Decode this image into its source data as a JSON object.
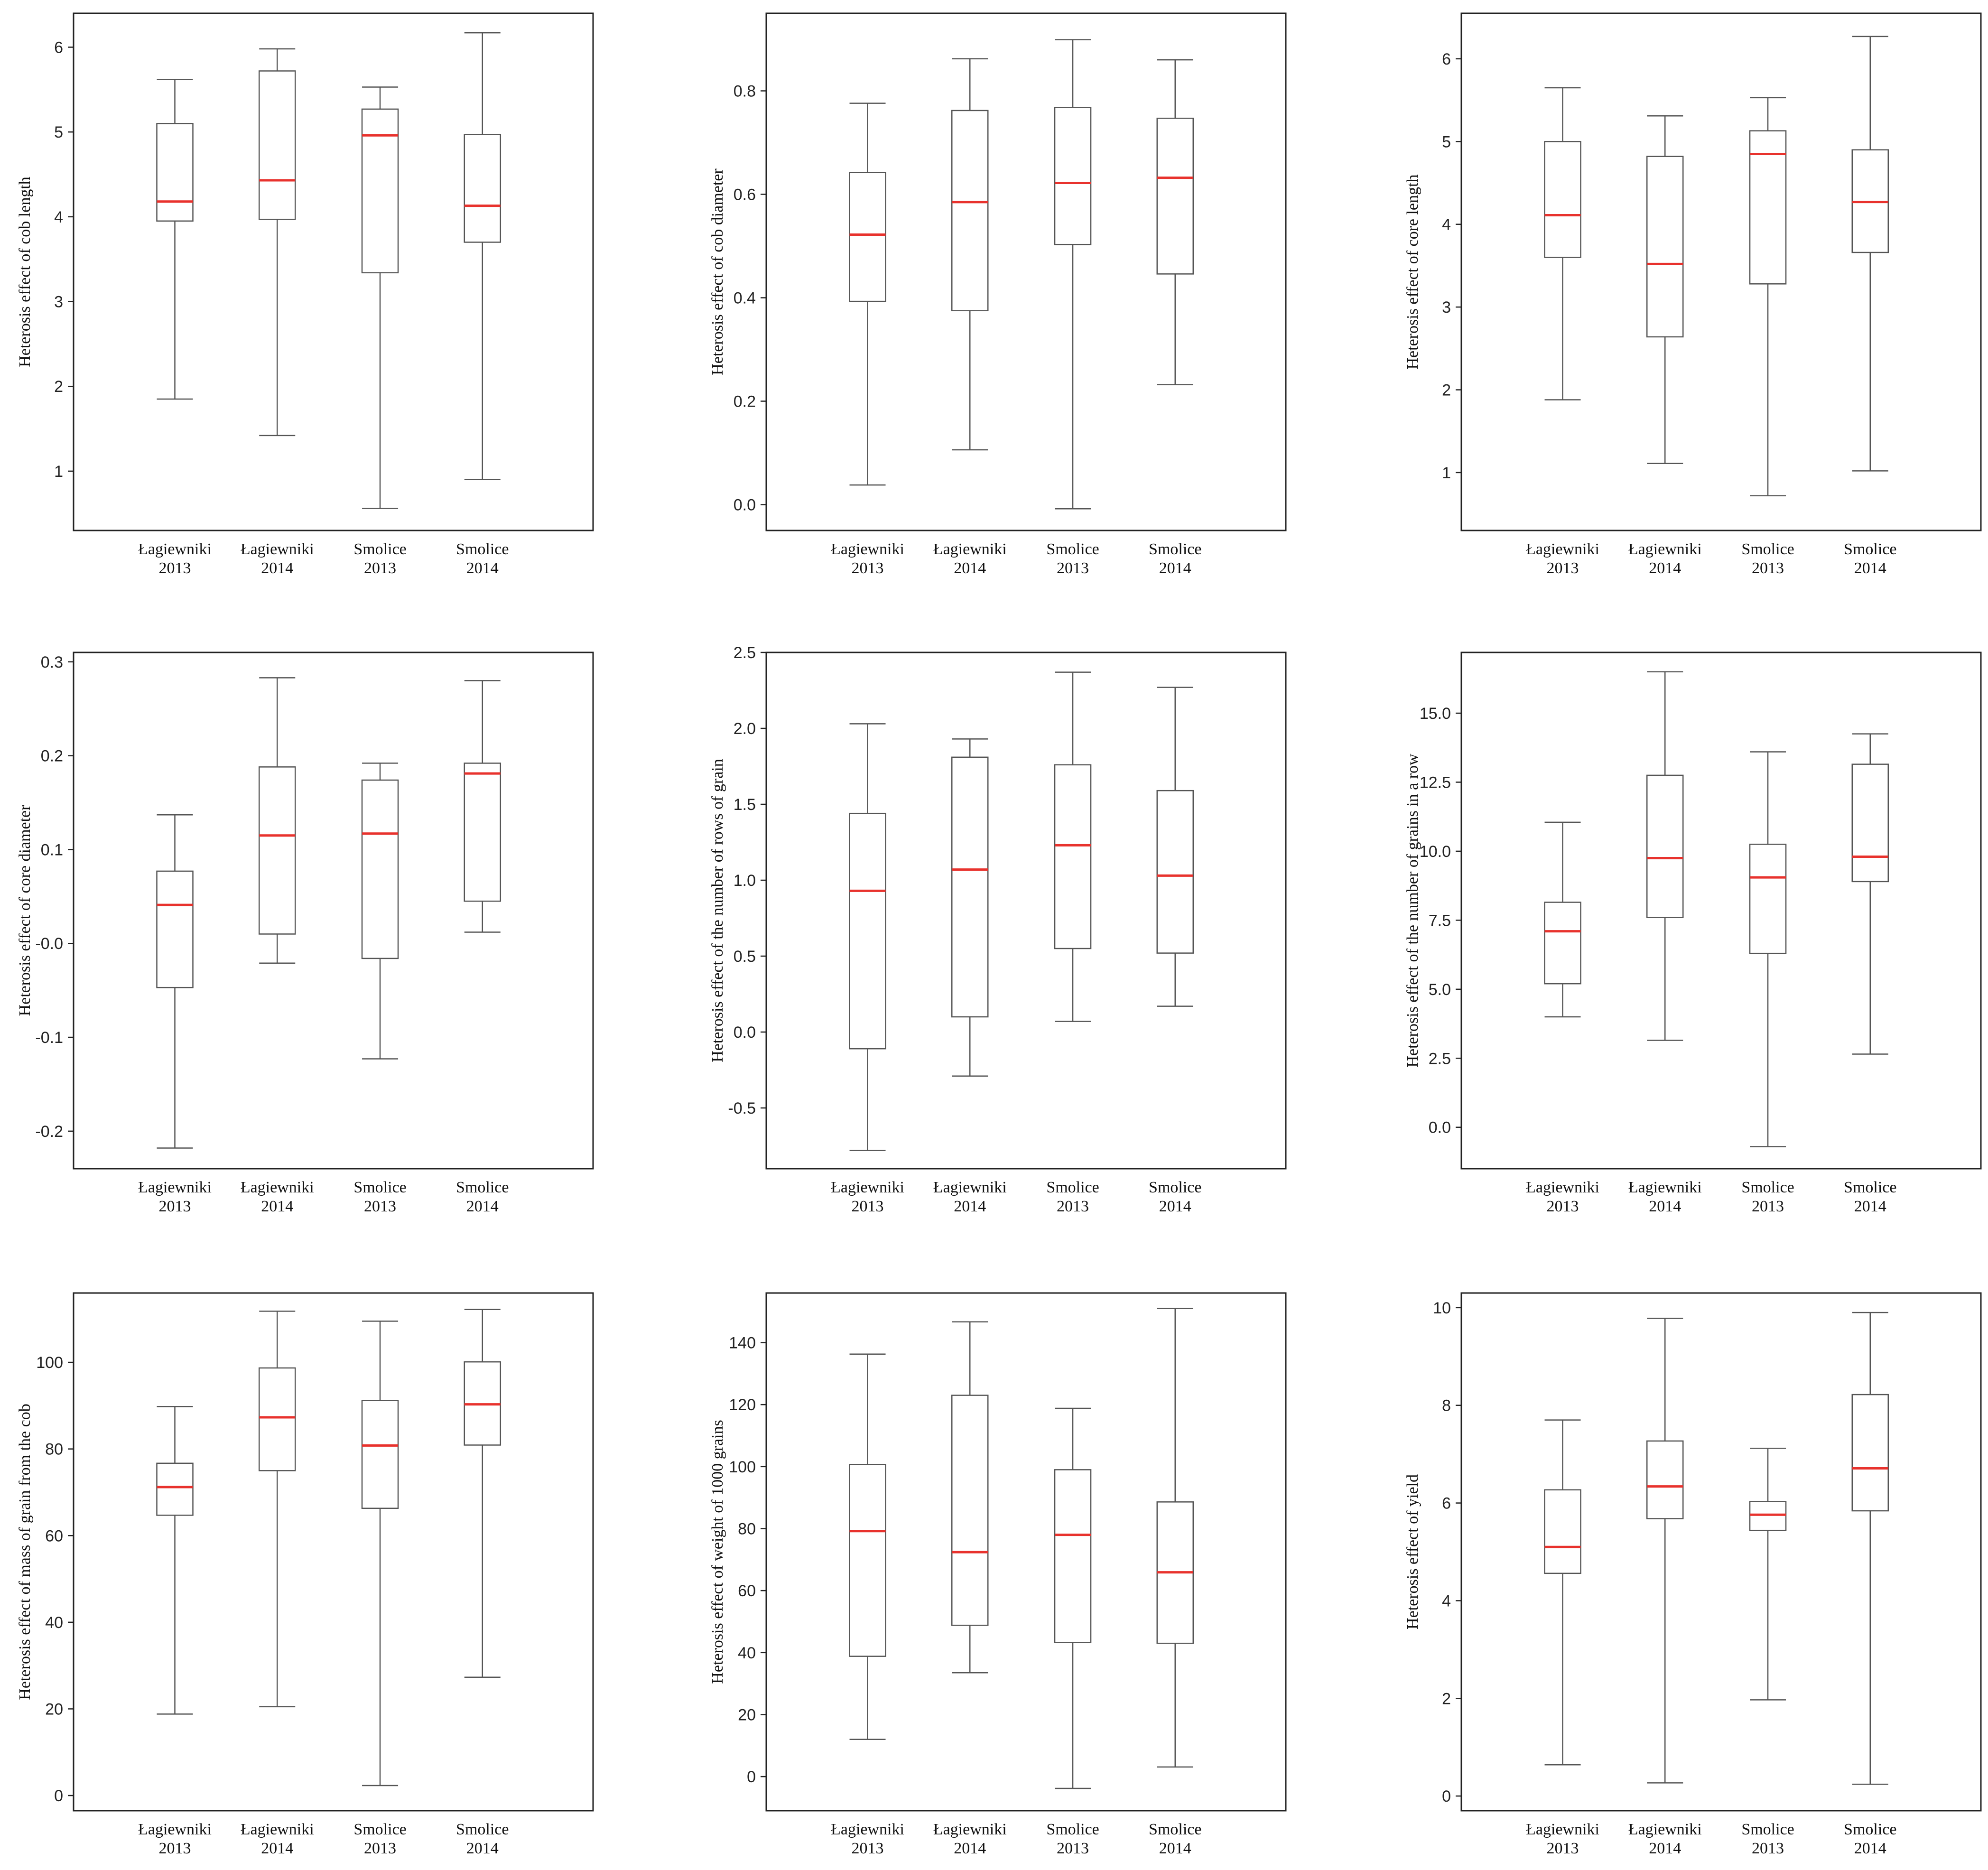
{
  "colors": {
    "median": "#e8322d",
    "box": "#555555",
    "frame": "#222222"
  },
  "chart_data": [
    {
      "type": "box",
      "ylabel": "Heterosis effect of cob length",
      "ylim": [
        0.3,
        6.4
      ],
      "yticks": [
        "1",
        "2",
        "3",
        "4",
        "5",
        "6"
      ],
      "ytick_values": [
        1,
        2,
        3,
        4,
        5,
        6
      ],
      "categories": [
        [
          "Łagiewniki",
          "2013"
        ],
        [
          "Łagiewniki",
          "2014"
        ],
        [
          "Smolice",
          "2013"
        ],
        [
          "Smolice",
          "2014"
        ]
      ],
      "boxes": [
        {
          "min": 1.85,
          "q1": 3.95,
          "median": 4.18,
          "q3": 5.1,
          "max": 5.62
        },
        {
          "min": 1.42,
          "q1": 3.97,
          "median": 4.43,
          "q3": 5.72,
          "max": 5.98
        },
        {
          "min": 0.56,
          "q1": 3.34,
          "median": 4.96,
          "q3": 5.27,
          "max": 5.53
        },
        {
          "min": 0.9,
          "q1": 3.7,
          "median": 4.13,
          "q3": 4.97,
          "max": 6.17
        }
      ]
    },
    {
      "type": "box",
      "ylabel": "Heterosis effect of cob diameter",
      "ylim": [
        -0.05,
        0.95
      ],
      "yticks": [
        "0.0",
        "0.2",
        "0.4",
        "0.6",
        "0.8"
      ],
      "ytick_values": [
        0,
        0.2,
        0.4,
        0.6,
        0.8
      ],
      "categories": [
        [
          "Łagiewniki",
          "2013"
        ],
        [
          "Łagiewniki",
          "2014"
        ],
        [
          "Smolice",
          "2013"
        ],
        [
          "Smolice",
          "2014"
        ]
      ],
      "boxes": [
        {
          "min": 0.038,
          "q1": 0.393,
          "median": 0.522,
          "q3": 0.642,
          "max": 0.776
        },
        {
          "min": 0.106,
          "q1": 0.375,
          "median": 0.585,
          "q3": 0.762,
          "max": 0.862
        },
        {
          "min": -0.008,
          "q1": 0.503,
          "median": 0.622,
          "q3": 0.768,
          "max": 0.899
        },
        {
          "min": 0.232,
          "q1": 0.446,
          "median": 0.632,
          "q3": 0.747,
          "max": 0.86
        }
      ]
    },
    {
      "type": "box",
      "ylabel": "Heterosis effect of core length",
      "ylim": [
        0.3,
        6.55
      ],
      "yticks": [
        "1",
        "2",
        "3",
        "4",
        "5",
        "6"
      ],
      "ytick_values": [
        1,
        2,
        3,
        4,
        5,
        6
      ],
      "categories": [
        [
          "Łagiewniki",
          "2013"
        ],
        [
          "Łagiewniki",
          "2014"
        ],
        [
          "Smolice",
          "2013"
        ],
        [
          "Smolice",
          "2014"
        ]
      ],
      "boxes": [
        {
          "min": 1.88,
          "q1": 3.6,
          "median": 4.11,
          "q3": 5.0,
          "max": 5.65
        },
        {
          "min": 1.11,
          "q1": 2.64,
          "median": 3.52,
          "q3": 4.82,
          "max": 5.31
        },
        {
          "min": 0.72,
          "q1": 3.28,
          "median": 4.85,
          "q3": 5.13,
          "max": 5.53
        },
        {
          "min": 1.02,
          "q1": 3.66,
          "median": 4.27,
          "q3": 4.9,
          "max": 6.27
        }
      ]
    },
    {
      "type": "box",
      "ylabel": "Heterosis effect of core diameter",
      "ylim": [
        -0.24,
        0.31
      ],
      "yticks": [
        "-0.2",
        "-0.1",
        "-0.0",
        "0.1",
        "0.2",
        "0.3"
      ],
      "ytick_values": [
        -0.2,
        -0.1,
        0,
        0.1,
        0.2,
        0.3
      ],
      "categories": [
        [
          "Łagiewniki",
          "2013"
        ],
        [
          "Łagiewniki",
          "2014"
        ],
        [
          "Smolice",
          "2013"
        ],
        [
          "Smolice",
          "2014"
        ]
      ],
      "boxes": [
        {
          "min": -0.218,
          "q1": -0.047,
          "median": 0.041,
          "q3": 0.077,
          "max": 0.137
        },
        {
          "min": -0.021,
          "q1": 0.01,
          "median": 0.115,
          "q3": 0.188,
          "max": 0.283
        },
        {
          "min": -0.123,
          "q1": -0.016,
          "median": 0.117,
          "q3": 0.174,
          "max": 0.192
        },
        {
          "min": 0.012,
          "q1": 0.045,
          "median": 0.181,
          "q3": 0.192,
          "max": 0.28
        }
      ]
    },
    {
      "type": "box",
      "ylabel": "Heterosis effect of the number of rows of grain",
      "ylim": [
        -0.9,
        2.5
      ],
      "yticks": [
        "-0.5",
        "0.0",
        "0.5",
        "1.0",
        "1.5",
        "2.0",
        "2.5"
      ],
      "ytick_values": [
        -0.5,
        0,
        0.5,
        1,
        1.5,
        2,
        2.5
      ],
      "categories": [
        [
          "Łagiewniki",
          "2013"
        ],
        [
          "Łagiewniki",
          "2014"
        ],
        [
          "Smolice",
          "2013"
        ],
        [
          "Smolice",
          "2014"
        ]
      ],
      "boxes": [
        {
          "min": -0.78,
          "q1": -0.11,
          "median": 0.93,
          "q3": 1.44,
          "max": 2.03
        },
        {
          "min": -0.29,
          "q1": 0.1,
          "median": 1.07,
          "q3": 1.81,
          "max": 1.93
        },
        {
          "min": 0.07,
          "q1": 0.55,
          "median": 1.23,
          "q3": 1.76,
          "max": 2.37
        },
        {
          "min": 0.17,
          "q1": 0.52,
          "median": 1.03,
          "q3": 1.59,
          "max": 2.27
        }
      ]
    },
    {
      "type": "box",
      "ylabel": "Heterosis effect of the number of grains in a row",
      "ylim": [
        -1.5,
        17.2
      ],
      "yticks": [
        "0.0",
        "2.5",
        "5.0",
        "7.5",
        "10.0",
        "12.5",
        "15.0"
      ],
      "ytick_values": [
        0,
        2.5,
        5,
        7.5,
        10,
        12.5,
        15
      ],
      "categories": [
        [
          "Łagiewniki",
          "2013"
        ],
        [
          "Łagiewniki",
          "2014"
        ],
        [
          "Smolice",
          "2013"
        ],
        [
          "Smolice",
          "2014"
        ]
      ],
      "boxes": [
        {
          "min": 4.0,
          "q1": 5.2,
          "median": 7.1,
          "q3": 8.15,
          "max": 11.05
        },
        {
          "min": 3.15,
          "q1": 7.6,
          "median": 9.75,
          "q3": 12.75,
          "max": 16.5
        },
        {
          "min": -0.7,
          "q1": 6.3,
          "median": 9.05,
          "q3": 10.25,
          "max": 13.6
        },
        {
          "min": 2.65,
          "q1": 8.9,
          "median": 9.8,
          "q3": 13.15,
          "max": 14.25
        }
      ]
    },
    {
      "type": "box",
      "ylabel": "Heterosis effect of mass of grain from the cob",
      "ylim": [
        -3.5,
        116
      ],
      "yticks": [
        "0",
        "20",
        "40",
        "60",
        "80",
        "100"
      ],
      "ytick_values": [
        0,
        20,
        40,
        60,
        80,
        100
      ],
      "categories": [
        [
          "Łagiewniki",
          "2013"
        ],
        [
          "Łagiewniki",
          "2014"
        ],
        [
          "Smolice",
          "2013"
        ],
        [
          "Smolice",
          "2014"
        ]
      ],
      "boxes": [
        {
          "min": 18.8,
          "q1": 64.7,
          "median": 71.2,
          "q3": 76.7,
          "max": 89.8
        },
        {
          "min": 20.5,
          "q1": 75.0,
          "median": 87.3,
          "q3": 98.7,
          "max": 111.8
        },
        {
          "min": 2.3,
          "q1": 66.3,
          "median": 80.8,
          "q3": 91.2,
          "max": 109.5
        },
        {
          "min": 27.3,
          "q1": 80.9,
          "median": 90.3,
          "q3": 100.1,
          "max": 112.2
        }
      ]
    },
    {
      "type": "box",
      "ylabel": "Heterosis effect of weight of 1000 grains",
      "ylim": [
        -11,
        156
      ],
      "yticks": [
        "0",
        "20",
        "40",
        "60",
        "80",
        "100",
        "120",
        "140"
      ],
      "ytick_values": [
        0,
        20,
        40,
        60,
        80,
        100,
        120,
        140
      ],
      "categories": [
        [
          "Łagiewniki",
          "2013"
        ],
        [
          "Łagiewniki",
          "2014"
        ],
        [
          "Smolice",
          "2013"
        ],
        [
          "Smolice",
          "2014"
        ]
      ],
      "boxes": [
        {
          "min": 12,
          "q1": 38.8,
          "median": 79.2,
          "q3": 100.7,
          "max": 136.3
        },
        {
          "min": 33.5,
          "q1": 48.8,
          "median": 72.4,
          "q3": 123.0,
          "max": 146.7
        },
        {
          "min": -3.8,
          "q1": 43.3,
          "median": 78.0,
          "q3": 99.0,
          "max": 118.8
        },
        {
          "min": 3.1,
          "q1": 43.0,
          "median": 65.9,
          "q3": 88.6,
          "max": 151.0
        }
      ]
    },
    {
      "type": "box",
      "ylabel": "Heterosis effect of yield",
      "ylim": [
        -0.3,
        10.3
      ],
      "yticks": [
        "0",
        "2",
        "4",
        "6",
        "8",
        "10"
      ],
      "ytick_values": [
        0,
        2,
        4,
        6,
        8,
        10
      ],
      "categories": [
        [
          "Łagiewniki",
          "2013"
        ],
        [
          "Łagiewniki",
          "2014"
        ],
        [
          "Smolice",
          "2013"
        ],
        [
          "Smolice",
          "2014"
        ]
      ],
      "boxes": [
        {
          "min": 0.64,
          "q1": 4.56,
          "median": 5.1,
          "q3": 6.27,
          "max": 7.7
        },
        {
          "min": 0.27,
          "q1": 5.68,
          "median": 6.34,
          "q3": 7.27,
          "max": 9.78
        },
        {
          "min": 1.97,
          "q1": 5.44,
          "median": 5.76,
          "q3": 6.03,
          "max": 7.12
        },
        {
          "min": 0.24,
          "q1": 5.84,
          "median": 6.71,
          "q3": 8.22,
          "max": 9.9
        }
      ]
    }
  ]
}
